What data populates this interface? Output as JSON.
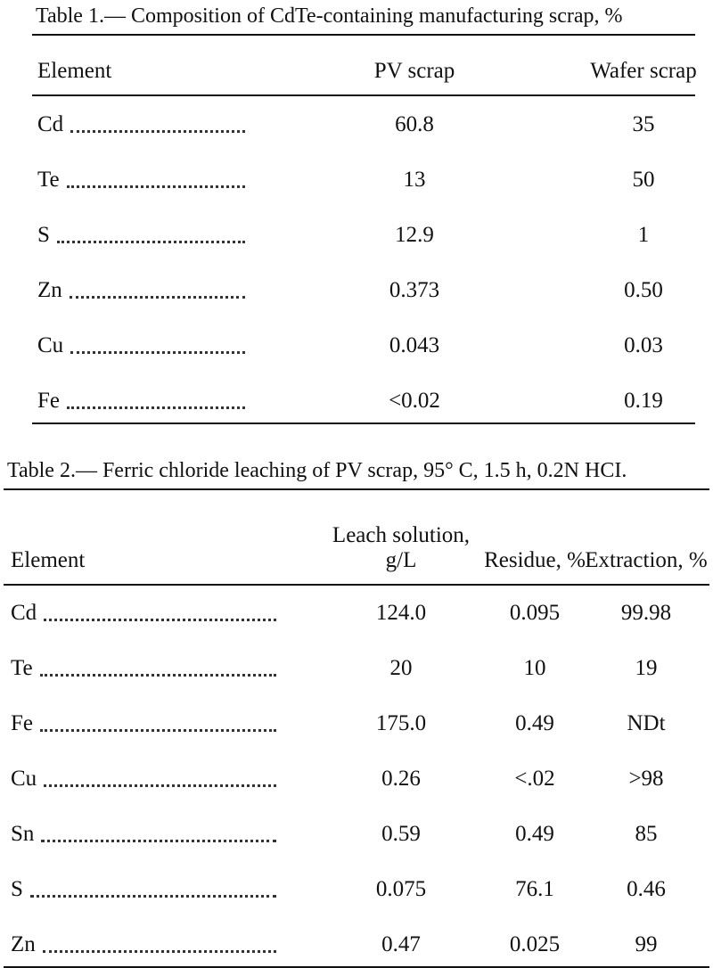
{
  "tables": [
    {
      "title": "Table 1.— Composition of CdTe-containing manufacturing scrap, %",
      "header": [
        "Element",
        "PV scrap",
        "Wafer scrap"
      ],
      "rows": [
        [
          "Cd",
          "60.8",
          "35"
        ],
        [
          "Te",
          "13",
          "50"
        ],
        [
          "S",
          "12.9",
          "1"
        ],
        [
          "Zn",
          "0.373",
          "0.50"
        ],
        [
          "Cu",
          "0.043",
          "0.03"
        ],
        [
          "Fe",
          "<0.02",
          "0.19"
        ]
      ]
    },
    {
      "title": "Table 2.— Ferric chloride leaching of PV scrap, 95° C, 1.5 h, 0.2N HCI.",
      "header": [
        "Element",
        "Leach solution, g/L",
        "Residue, %",
        "Extraction, %"
      ],
      "rows": [
        [
          "Cd",
          "124.0",
          "0.095",
          "99.98"
        ],
        [
          "Te",
          "20",
          "10",
          "19"
        ],
        [
          "Fe",
          "175.0",
          "0.49",
          "NDt"
        ],
        [
          "Cu",
          "0.26",
          "<.02",
          ">98"
        ],
        [
          "Sn",
          "0.59",
          "0.49",
          "85"
        ],
        [
          "S",
          "0.075",
          "76.1",
          "0.46"
        ],
        [
          "Zn",
          "0.47",
          "0.025",
          "99"
        ]
      ]
    }
  ]
}
